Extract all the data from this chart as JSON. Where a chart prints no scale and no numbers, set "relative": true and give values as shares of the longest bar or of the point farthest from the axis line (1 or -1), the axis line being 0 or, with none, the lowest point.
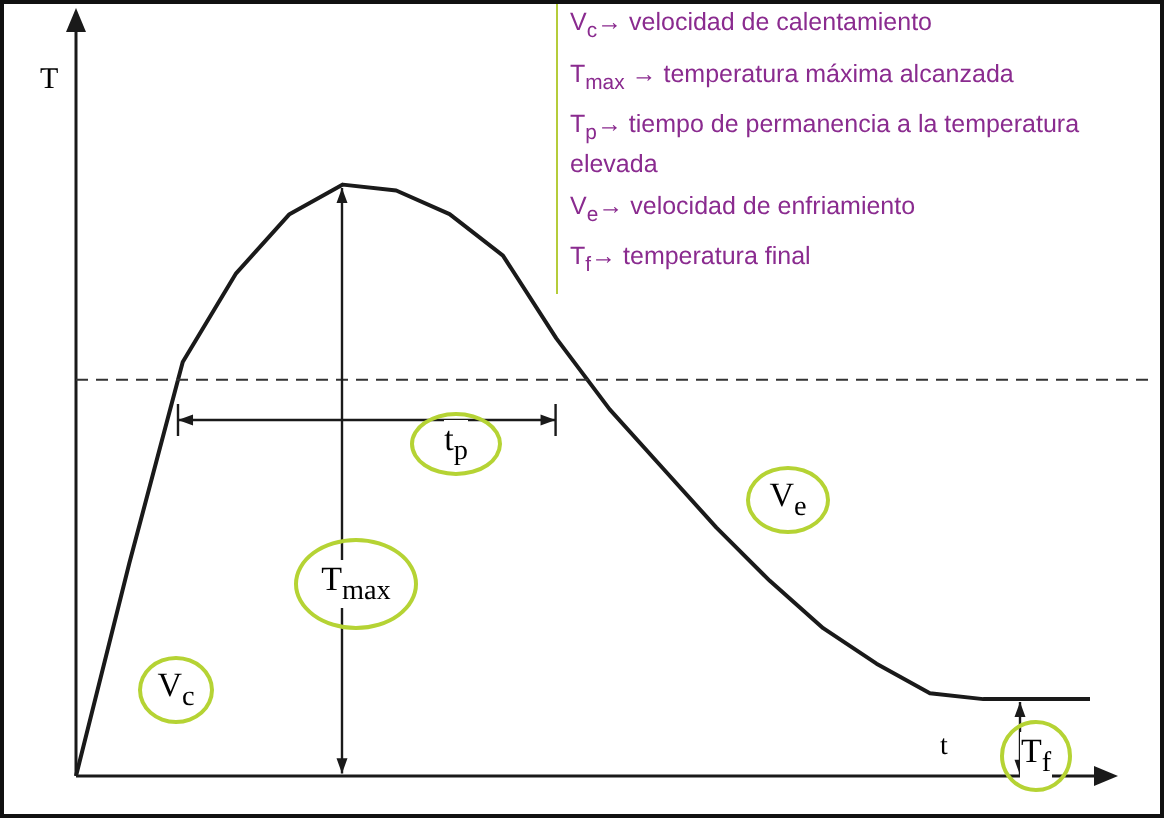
{
  "chart_data": {
    "type": "line",
    "relative": true,
    "xlabel": "t",
    "ylabel": "T",
    "categories": [
      null,
      null,
      null,
      null,
      null,
      null,
      null,
      null,
      null,
      null,
      null,
      null,
      null,
      null,
      null,
      null,
      null,
      null,
      null,
      null
    ],
    "series": [
      {
        "color": "#1a1a1a",
        "values": [
          0,
          0.36,
          0.7,
          0.85,
          0.95,
          1,
          0.99,
          0.95,
          0.88,
          0.74,
          0.62,
          0.52,
          0.42,
          0.33,
          0.25,
          0.19,
          0.14,
          0.13,
          0.13,
          0.13
        ]
      }
    ],
    "ref_lines": [
      {
        "axis": "y",
        "value": 0.67,
        "color": "#333333",
        "line_style": "dashed"
      }
    ],
    "annotations": [
      "V$_{c}$→ velocidad de calentamiento",
      "T$_{max}$ → temperatura máxima alcanzada",
      "T$_{p}$→ tiempo de permanencia a la temperatura elevada",
      "V$_{e}$→ velocidad de enfriamiento",
      "T$_{f}$→ temperatura final",
      "V$_{c}$",
      "T$_{max}$",
      "t$_{p}$",
      "V$_{e}$",
      "T$_{f}$"
    ],
    "legend": false,
    "marker": "none",
    "line_style": "solid"
  }
}
